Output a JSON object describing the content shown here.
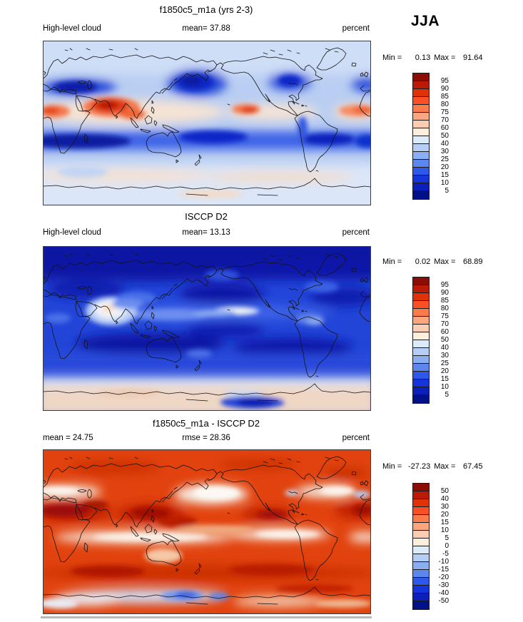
{
  "season": "JJA",
  "panels": [
    {
      "title": "f1850c5_m1a (yrs 2-3)",
      "left_label": "High-level cloud",
      "center_stat": "mean=  37.88",
      "units": "percent",
      "min_label": "Min =",
      "min_value": "0.13",
      "max_label": "Max =",
      "max_value": "91.64",
      "ticks": [
        "95",
        "90",
        "85",
        "80",
        "75",
        "70",
        "60",
        "50",
        "40",
        "30",
        "25",
        "20",
        "15",
        "10",
        "5"
      ]
    },
    {
      "title": "ISCCP D2",
      "left_label": "High-level cloud",
      "center_stat": "mean=  13.13",
      "units": "percent",
      "min_label": "Min =",
      "min_value": "0.02",
      "max_label": "Max =",
      "max_value": "68.89",
      "ticks": [
        "95",
        "90",
        "85",
        "80",
        "75",
        "70",
        "60",
        "50",
        "40",
        "30",
        "25",
        "20",
        "15",
        "10",
        "5"
      ]
    },
    {
      "title": "f1850c5_m1a - ISCCP D2",
      "left_label": "mean =  24.75",
      "center_stat": "rmse =  28.36",
      "units": "percent",
      "min_label": "Min =",
      "min_value": "-27.23",
      "max_label": "Max =",
      "max_value": "67.45",
      "ticks": [
        "50",
        "40",
        "30",
        "20",
        "15",
        "10",
        "5",
        "0",
        "-5",
        "-10",
        "-15",
        "-20",
        "-30",
        "-40",
        "-50"
      ]
    }
  ],
  "colorbar_colors": [
    "#8d0d06",
    "#bb1b06",
    "#e03206",
    "#fb4f26",
    "#fb7b4a",
    "#fba67e",
    "#fccdb2",
    "#fdeede",
    "#dcebfa",
    "#b6cdf6",
    "#8badf2",
    "#5d86ee",
    "#2e58ea",
    "#1634dc",
    "#0b1fbb",
    "#001089"
  ],
  "chart_data": [
    {
      "type": "heatmap",
      "title": "f1850c5_m1a (yrs 2-3)",
      "variable": "High-level cloud",
      "units": "percent",
      "season": "JJA",
      "mean": 37.88,
      "min": 0.13,
      "max": 91.64,
      "levels": [
        5,
        10,
        15,
        20,
        25,
        30,
        40,
        50,
        60,
        70,
        75,
        80,
        85,
        90,
        95
      ],
      "palette": "blue-to-red, 16 classes",
      "projection": "global lat-lon, longitude 0-360E (Pacific-centered)",
      "legend_position": "right",
      "pattern_notes": "High values (red) along tropical ITCZ: India/SE Asia, central Africa, Central America, tropical Atlantic; low values (dark blue) over subtropical oceans, N Africa/Middle East band and 20-30S band; light blue mid/high latitudes; pale peach ring near Antarctica."
    },
    {
      "type": "heatmap",
      "title": "ISCCP D2",
      "variable": "High-level cloud",
      "units": "percent",
      "season": "JJA",
      "mean": 13.13,
      "min": 0.02,
      "max": 68.89,
      "levels": [
        5,
        10,
        15,
        20,
        25,
        30,
        40,
        50,
        60,
        70,
        75,
        80,
        85,
        90,
        95
      ],
      "palette": "blue-to-red, 16 classes",
      "projection": "global lat-lon, longitude 0-360E (Pacific-centered)",
      "legend_position": "right",
      "pattern_notes": "Mostly dark blue (low cloud amounts); white/peach maximum over India-Bay of Bengal monsoon region; lighter blue tropical bands and east Pacific; pale pink band over Southern Ocean near Antarctica."
    },
    {
      "type": "heatmap",
      "title": "f1850c5_m1a - ISCCP D2",
      "units": "percent",
      "season": "JJA",
      "mean": 24.75,
      "rmse": 28.36,
      "min": -27.23,
      "max": 67.45,
      "levels": [
        -50,
        -40,
        -30,
        -20,
        -15,
        -10,
        -5,
        0,
        5,
        10,
        15,
        20,
        30,
        40,
        50
      ],
      "palette": "blue-to-red, 16 classes",
      "legend_position": "right",
      "pattern_notes": "Positive (red) nearly everywhere; darkest red in tropics and 55-65S band; near-zero white bands in northern subtropics and ~40S; negative (blue) patch along Antarctic coast south of Australia."
    }
  ]
}
